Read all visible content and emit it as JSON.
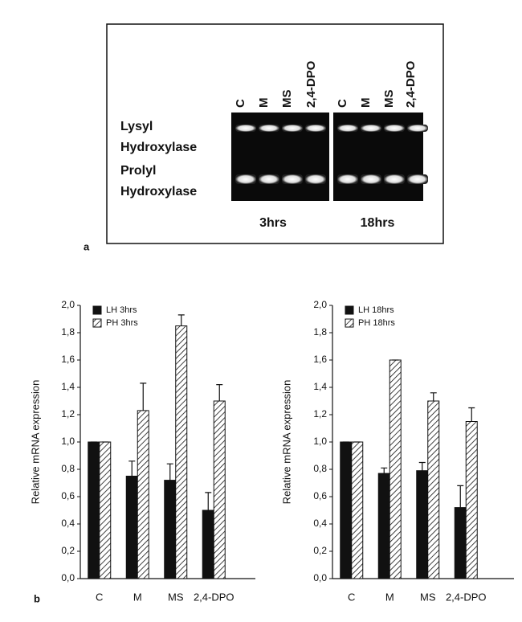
{
  "gel": {
    "panel_label": "a",
    "rows": [
      [
        "Lysyl",
        "Hydroxylase"
      ],
      [
        "Prolyl",
        "Hydroxylase"
      ]
    ],
    "groups": [
      {
        "label": "3hrs",
        "lanes": [
          "C",
          "M",
          "MS",
          "2,4-DPO"
        ]
      },
      {
        "label": "18hrs",
        "lanes": [
          "C",
          "M",
          "MS",
          "2,4-DPO"
        ]
      }
    ]
  },
  "panel_b_label": "b",
  "chart_data": [
    {
      "type": "bar",
      "ylabel": "Relative mRNA expression",
      "categories": [
        "C",
        "M",
        "MS",
        "2,4-DPO"
      ],
      "series": [
        {
          "name": "LH  3hrs",
          "color": "#111111",
          "hatch": false,
          "values": [
            1.0,
            0.75,
            0.72,
            0.5
          ],
          "errors": [
            0,
            0.11,
            0.12,
            0.13
          ]
        },
        {
          "name": "PH  3hrs",
          "color": "#ffffff",
          "hatch": true,
          "values": [
            1.0,
            1.23,
            1.85,
            1.3
          ],
          "errors": [
            0,
            0.2,
            0.08,
            0.12
          ]
        }
      ],
      "ylim": [
        0,
        2
      ],
      "yticks": [
        {
          "value": 0,
          "label": "0,0"
        },
        {
          "value": 0.2,
          "label": "0,2"
        },
        {
          "value": 0.4,
          "label": "0,4"
        },
        {
          "value": 0.6,
          "label": "0,6"
        },
        {
          "value": 0.8,
          "label": "0,8"
        },
        {
          "value": 1.0,
          "label": "1,0"
        },
        {
          "value": 1.2,
          "label": "1,2"
        },
        {
          "value": 1.4,
          "label": "1,4"
        },
        {
          "value": 1.6,
          "label": "1,6"
        },
        {
          "value": 1.8,
          "label": "1,8"
        },
        {
          "value": 2.0,
          "label": "2,0"
        }
      ],
      "legend": "upper left",
      "grid": false
    },
    {
      "type": "bar",
      "ylabel": "Relative mRNA expression",
      "categories": [
        "C",
        "M",
        "MS",
        "2,4-DPO"
      ],
      "series": [
        {
          "name": "LH  18hrs",
          "color": "#111111",
          "hatch": false,
          "values": [
            1.0,
            0.77,
            0.79,
            0.52
          ],
          "errors": [
            0,
            0.04,
            0.06,
            0.16
          ]
        },
        {
          "name": "PH  18hrs",
          "color": "#ffffff",
          "hatch": true,
          "values": [
            1.0,
            1.6,
            1.3,
            1.15
          ],
          "errors": [
            0,
            0,
            0.06,
            0.1
          ]
        }
      ],
      "ylim": [
        0,
        2
      ],
      "yticks": [
        {
          "value": 0,
          "label": "0,0"
        },
        {
          "value": 0.2,
          "label": "0,2"
        },
        {
          "value": 0.4,
          "label": "0,4"
        },
        {
          "value": 0.6,
          "label": "0,6"
        },
        {
          "value": 0.8,
          "label": "0,8"
        },
        {
          "value": 1.0,
          "label": "1,0"
        },
        {
          "value": 1.2,
          "label": "1,2"
        },
        {
          "value": 1.4,
          "label": "1,4"
        },
        {
          "value": 1.6,
          "label": "1,6"
        },
        {
          "value": 1.8,
          "label": "1,8"
        },
        {
          "value": 2.0,
          "label": "2,0"
        }
      ],
      "legend": "upper left",
      "grid": false
    }
  ]
}
